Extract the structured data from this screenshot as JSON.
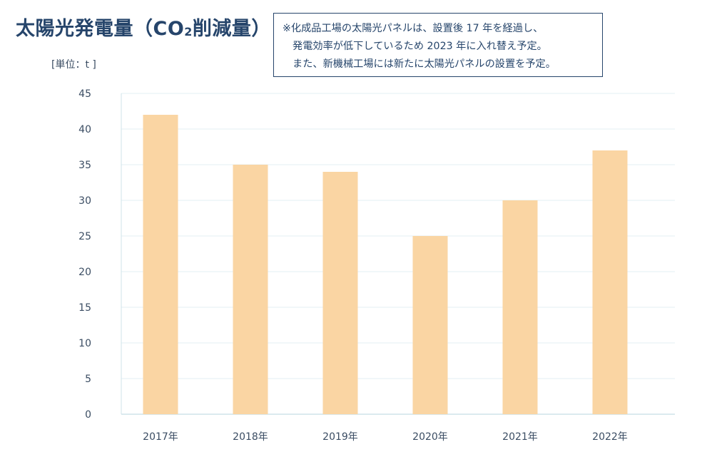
{
  "title_main": "太陽光発電量（CO",
  "title_sub": "2",
  "title_rest": "削減量）",
  "note": [
    "※化成品工場の太陽光パネルは、設置後 17 年を経過し、",
    "発電効率が低下しているため 2023 年に入れ替え予定。",
    "また、新機械工場には新たに太陽光パネルの設置を予定。"
  ],
  "unit_label": "[単位：t ]",
  "chart_data": {
    "type": "bar",
    "categories": [
      "2017年",
      "2018年",
      "2019年",
      "2020年",
      "2021年",
      "2022年"
    ],
    "values": [
      42,
      35,
      34,
      25,
      30,
      37
    ],
    "ylim": [
      0,
      45
    ],
    "yticks": [
      0,
      5,
      10,
      15,
      20,
      25,
      30,
      35,
      40,
      45
    ],
    "grid": true,
    "colors": {
      "bar": "#fad5a3",
      "grid": "#e3eff3",
      "axis": "#cfe3ea"
    }
  }
}
